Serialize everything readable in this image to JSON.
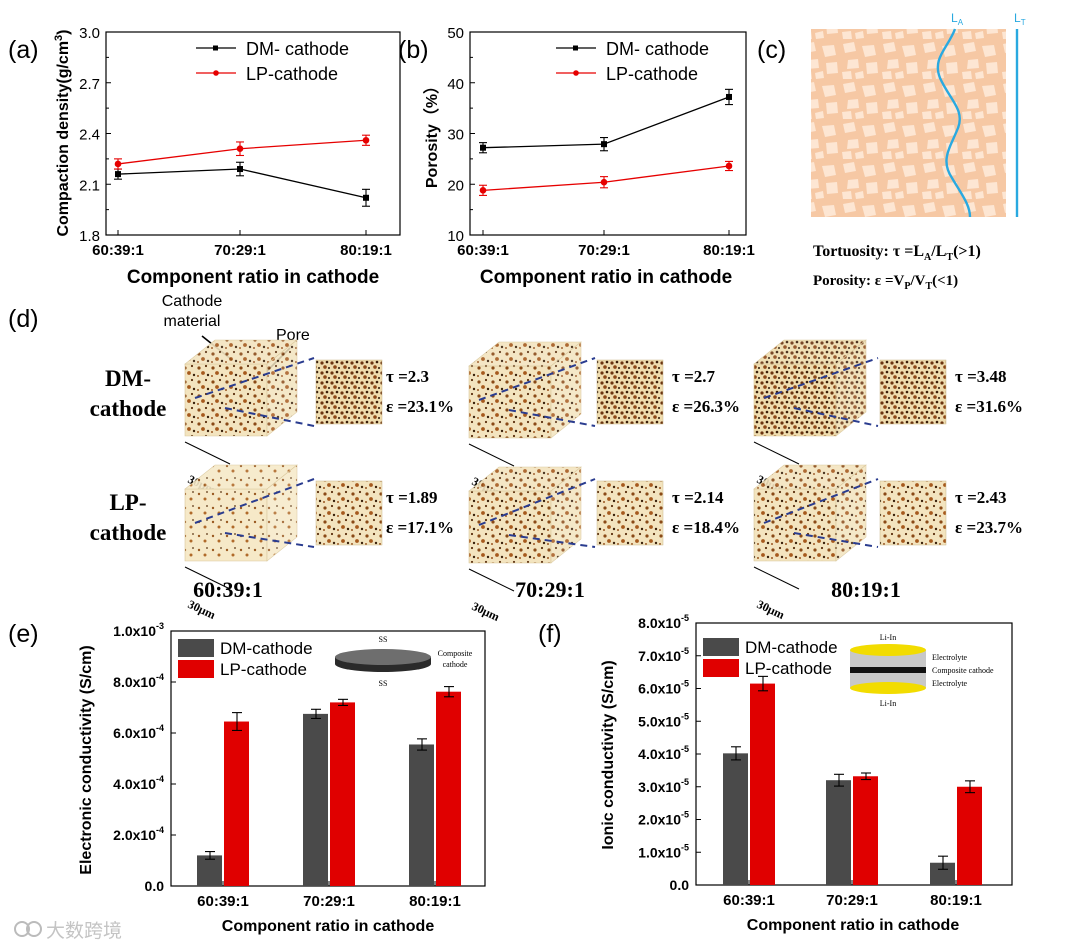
{
  "panels": {
    "a": "(a)",
    "b": "(b)",
    "c": "(c)",
    "d": "(d)",
    "e": "(e)",
    "f": "(f)"
  },
  "colors": {
    "dm": "#000000",
    "lp": "#e60000",
    "dm_bar": "#4a4a4a",
    "lp_bar": "#e00000",
    "cyan": "#29a9e0",
    "tan": "#f6c8a4"
  },
  "chart_data": [
    {
      "id": "a",
      "type": "line",
      "categories": [
        "60:39:1",
        "70:29:1",
        "80:19:1"
      ],
      "series": [
        {
          "name": "DM- cathode",
          "values": [
            2.16,
            2.19,
            2.02
          ],
          "errors": [
            0.03,
            0.04,
            0.05
          ]
        },
        {
          "name": "LP-cathode",
          "values": [
            2.22,
            2.31,
            2.36
          ],
          "errors": [
            0.03,
            0.04,
            0.03
          ]
        }
      ],
      "ylim": [
        1.8,
        3.0
      ],
      "yticks": [
        "1.8",
        "2.1",
        "2.4",
        "2.7",
        "3.0"
      ],
      "xlabel": "Component ratio in cathode",
      "ylabel": "Compaction density(g/cm",
      "ylabel_sup": "3",
      "ylabel_end": ")"
    },
    {
      "id": "b",
      "type": "line",
      "categories": [
        "60:39:1",
        "70:29:1",
        "80:19:1"
      ],
      "series": [
        {
          "name": "DM- cathode",
          "values": [
            27.2,
            27.9,
            37.2
          ],
          "errors": [
            1.0,
            1.3,
            1.5
          ]
        },
        {
          "name": "LP-cathode",
          "values": [
            18.8,
            20.4,
            23.6
          ],
          "errors": [
            1.0,
            1.1,
            0.9
          ]
        }
      ],
      "ylim": [
        10,
        50
      ],
      "yticks": [
        "10",
        "20",
        "30",
        "40",
        "50"
      ],
      "xlabel": "Component ratio in cathode",
      "ylabel": "Porosity（%）"
    },
    {
      "id": "e",
      "type": "bar",
      "categories": [
        "60:39:1",
        "70:29:1",
        "80:19:1"
      ],
      "series": [
        {
          "name": "DM-cathode",
          "values": [
            0.00012,
            0.000675,
            0.000555
          ],
          "errors": [
            1.5e-05,
            1.8e-05,
            2.2e-05
          ]
        },
        {
          "name": "LP-cathode",
          "values": [
            0.000645,
            0.00072,
            0.000762
          ],
          "errors": [
            3.5e-05,
            1.2e-05,
            2e-05
          ]
        }
      ],
      "ylim": [
        0,
        0.001
      ],
      "yticks": [
        {
          "m": "0.0",
          "e": ""
        },
        {
          "m": "2.0x10",
          "e": "-4"
        },
        {
          "m": "4.0x10",
          "e": "-4"
        },
        {
          "m": "6.0x10",
          "e": "-4"
        },
        {
          "m": "8.0x10",
          "e": "-4"
        },
        {
          "m": "1.0x10",
          "e": "-3"
        }
      ],
      "xlabel": "Component ratio in cathode",
      "ylabel": "Electronic conductivity (S/cm)"
    },
    {
      "id": "f",
      "type": "bar",
      "categories": [
        "60:39:1",
        "70:29:1",
        "80:19:1"
      ],
      "series": [
        {
          "name": "DM-cathode",
          "values": [
            4.02e-05,
            3.2e-05,
            6.8e-06
          ],
          "errors": [
            2e-06,
            1.8e-06,
            2e-06
          ]
        },
        {
          "name": "LP-cathode",
          "values": [
            6.15e-05,
            3.32e-05,
            3e-05
          ],
          "errors": [
            2.2e-06,
            1e-06,
            1.8e-06
          ]
        }
      ],
      "ylim": [
        0,
        8e-05
      ],
      "yticks": [
        {
          "m": "0.0",
          "e": ""
        },
        {
          "m": "1.0x10",
          "e": "-5"
        },
        {
          "m": "2.0x10",
          "e": "-5"
        },
        {
          "m": "3.0x10",
          "e": "-5"
        },
        {
          "m": "4.0x10",
          "e": "-5"
        },
        {
          "m": "5.0x10",
          "e": "-5"
        },
        {
          "m": "6.0x10",
          "e": "-5"
        },
        {
          "m": "7.0x10",
          "e": "-5"
        },
        {
          "m": "8.0x10",
          "e": "-5"
        }
      ],
      "xlabel": "Component ratio in cathode",
      "ylabel": "Ionic conductivity (S/cm)"
    }
  ],
  "panel_c": {
    "la_label": "L",
    "la_sub": "A",
    "lt_label": "L",
    "lt_sub": "T",
    "tortuosity_prefix": "Tortuosity: τ =L",
    "tortuosity_sub1": "A",
    "tortuosity_mid": "/L",
    "tortuosity_sub2": "T",
    "tortuosity_suffix": "(>1)",
    "porosity_prefix": "Porosity: ε =V",
    "porosity_sub1": "P",
    "porosity_mid": "/V",
    "porosity_sub2": "T",
    "porosity_suffix": "(<1)"
  },
  "panel_d": {
    "callout_material_1": "Cathode",
    "callout_material_2": "material",
    "callout_pore": "Pore",
    "rows": [
      {
        "label_1": "DM-",
        "label_2": "cathode",
        "tau": [
          "τ =2.3",
          "τ =2.7",
          "τ =3.48"
        ],
        "eps": [
          "ε =23.1%",
          "ε =26.3%",
          "ε =31.6%"
        ]
      },
      {
        "label_1": "LP-",
        "label_2": "cathode",
        "tau": [
          "τ =1.89",
          "τ =2.14",
          "τ =2.43"
        ],
        "eps": [
          "ε =17.1%",
          "ε =18.4%",
          "ε =23.7%"
        ]
      }
    ],
    "scale": "30μm",
    "ratios": [
      "60:39:1",
      "70:29:1",
      "80:19:1"
    ]
  },
  "inset_e": {
    "top": "SS",
    "bottom": "SS",
    "side_1": "Composite",
    "side_2": "cathode"
  },
  "inset_f": {
    "top": "Li-In",
    "bottom": "Li-In",
    "l1": "Electrolyte",
    "l2": "Composite cathode",
    "l3": "Electrolyte"
  },
  "watermark": "大数跨境"
}
